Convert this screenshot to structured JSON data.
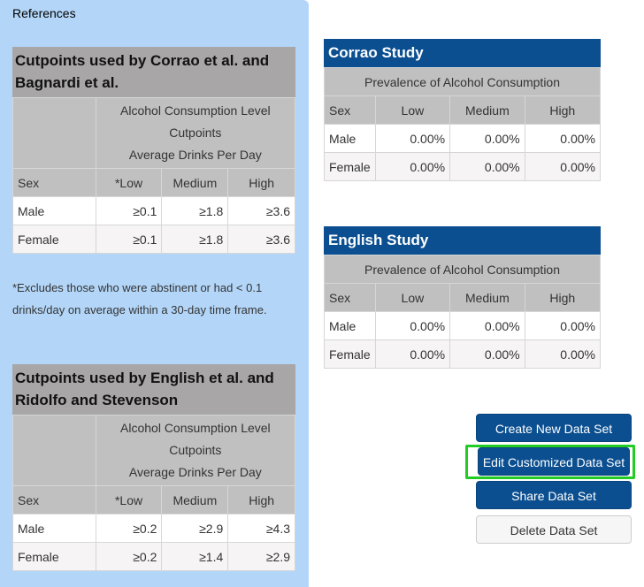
{
  "references": {
    "title": "References",
    "tables": [
      {
        "heading": "Cutpoints used by Corrao et al. and Bagnardi et al.",
        "level_lines": [
          "Alcohol Consumption Level",
          "Cutpoints",
          "Average Drinks Per Day"
        ],
        "columns": [
          "Sex",
          "*Low",
          "Medium",
          "High"
        ],
        "rows": [
          {
            "sex": "Male",
            "low": "≥0.1",
            "medium": "≥1.8",
            "high": "≥3.6"
          },
          {
            "sex": "Female",
            "low": "≥0.1",
            "medium": "≥1.8",
            "high": "≥3.6"
          }
        ]
      },
      {
        "heading": "Cutpoints used by English et al. and Ridolfo and Stevenson",
        "level_lines": [
          "Alcohol Consumption Level",
          "Cutpoints",
          "Average Drinks Per Day"
        ],
        "columns": [
          "Sex",
          "*Low",
          "Medium",
          "High"
        ],
        "rows": [
          {
            "sex": "Male",
            "low": "≥0.2",
            "medium": "≥2.9",
            "high": "≥4.3"
          },
          {
            "sex": "Female",
            "low": "≥0.2",
            "medium": "≥1.4",
            "high": "≥2.9"
          }
        ]
      }
    ],
    "footnote": "*Excludes those who were abstinent or had < 0.1 drinks/day on average within a 30-day time frame."
  },
  "studies": [
    {
      "title": "Corrao Study",
      "subheading": "Prevalence of Alcohol Consumption",
      "columns": [
        "Sex",
        "Low",
        "Medium",
        "High"
      ],
      "rows": [
        {
          "sex": "Male",
          "low": "0.00%",
          "medium": "0.00%",
          "high": "0.00%"
        },
        {
          "sex": "Female",
          "low": "0.00%",
          "medium": "0.00%",
          "high": "0.00%"
        }
      ]
    },
    {
      "title": "English Study",
      "subheading": "Prevalence of Alcohol Consumption",
      "columns": [
        "Sex",
        "Low",
        "Medium",
        "High"
      ],
      "rows": [
        {
          "sex": "Male",
          "low": "0.00%",
          "medium": "0.00%",
          "high": "0.00%"
        },
        {
          "sex": "Female",
          "low": "0.00%",
          "medium": "0.00%",
          "high": "0.00%"
        }
      ]
    }
  ],
  "actions": {
    "create": "Create New Data Set",
    "edit": "Edit Customized Data Set",
    "share": "Share Data Set",
    "delete": "Delete Data Set"
  },
  "colors": {
    "panel": "#b3d6f8",
    "study_header": "#0b4f90",
    "highlight": "#22cc22"
  }
}
